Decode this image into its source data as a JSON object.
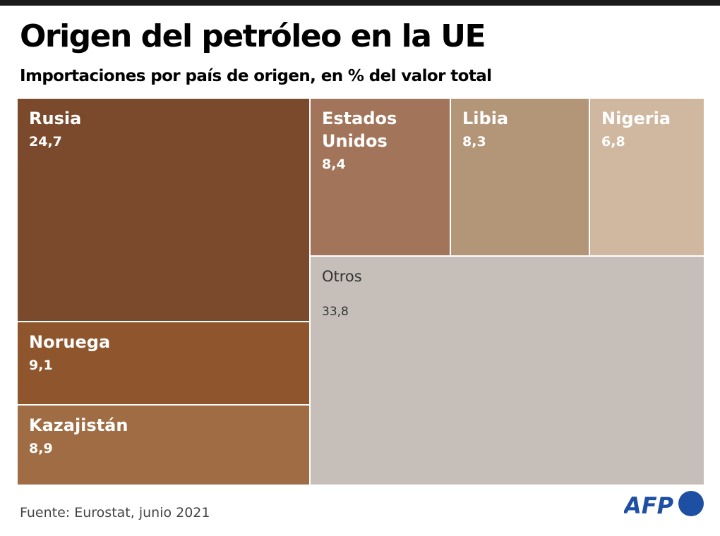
{
  "title": "Origen del petróleo en la UE",
  "subtitle": "Importaciones por país de origen, en % del valor total",
  "source": "Fuente: Eurostat, junio 2021",
  "logo_text": "AFP",
  "colors": {
    "logo": "#1d4fa3"
  },
  "chart_data": {
    "type": "treemap",
    "title": "Origen del petróleo en la UE",
    "subtitle": "Importaciones por país de origen, en % del valor total",
    "unit": "%",
    "items": [
      {
        "label": "Rusia",
        "value_label": "24,7",
        "value": 24.7,
        "color": "#7b4a2c"
      },
      {
        "label": "Noruega",
        "value_label": "9,1",
        "value": 9.1,
        "color": "#8f552c"
      },
      {
        "label": "Kazajistán",
        "value_label": "8,9",
        "value": 8.9,
        "color": "#a06c43"
      },
      {
        "label": "Estados Unidos",
        "value_label": "8,4",
        "value": 8.4,
        "color": "#a2755a"
      },
      {
        "label": "Libia",
        "value_label": "8,3",
        "value": 8.3,
        "color": "#b39578"
      },
      {
        "label": "Nigeria",
        "value_label": "6,8",
        "value": 6.8,
        "color": "#d0b8a0"
      },
      {
        "label": "Otros",
        "value_label": "33,8",
        "value": 33.8,
        "color": "#c6bfb9"
      }
    ]
  }
}
